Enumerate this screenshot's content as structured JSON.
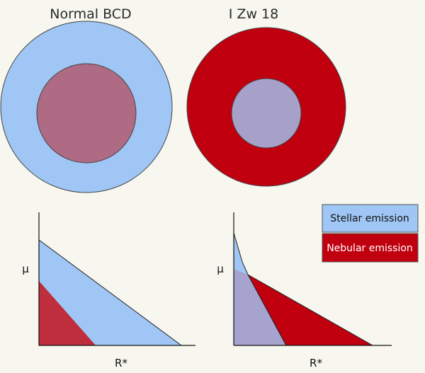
{
  "panels": {
    "left_title": "Normal BCD",
    "right_title": "I Zw 18"
  },
  "axes": {
    "left_ylabel": "μ",
    "left_xlabel": "R*",
    "right_ylabel": "μ",
    "right_xlabel": "R*"
  },
  "legend": {
    "stellar_label": "Stellar emission",
    "nebular_label": "Nebular emission"
  },
  "colors": {
    "background": "#f7f7ef",
    "stellar": "#9fc6f4",
    "nebular": "#c0000f",
    "left_inner": "#af6a84",
    "left_profile_nebular": "#be2e3d",
    "right_inner": "#a7a1ca",
    "right_profile_overlap": "#a6a3cf"
  }
}
